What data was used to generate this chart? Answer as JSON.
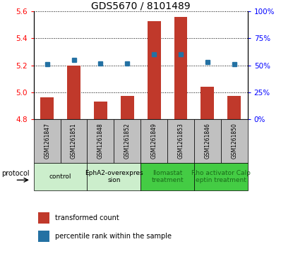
{
  "title": "GDS5670 / 8101489",
  "samples": [
    "GSM1261847",
    "GSM1261851",
    "GSM1261848",
    "GSM1261852",
    "GSM1261849",
    "GSM1261853",
    "GSM1261846",
    "GSM1261850"
  ],
  "transformed_count": [
    4.96,
    5.2,
    4.93,
    4.97,
    5.53,
    5.56,
    5.04,
    4.97
  ],
  "percentile_rank": [
    51,
    55,
    52,
    52,
    60,
    60,
    53,
    51
  ],
  "ylim_left": [
    4.8,
    5.6
  ],
  "ylim_right": [
    0,
    100
  ],
  "yticks_left": [
    4.8,
    5.0,
    5.2,
    5.4,
    5.6
  ],
  "yticks_right": [
    0,
    25,
    50,
    75,
    100
  ],
  "bar_color": "#c0392b",
  "dot_color": "#2471a3",
  "bar_width": 0.5,
  "groups": [
    {
      "label": "control",
      "samples": [
        0,
        1
      ],
      "color": "#cceecc"
    },
    {
      "label": "EphA2-overexpres\nsion",
      "samples": [
        2,
        3
      ],
      "color": "#cceecc"
    },
    {
      "label": "Ilomastat\ntreatment",
      "samples": [
        4,
        5
      ],
      "color": "#44cc44"
    },
    {
      "label": "Rho activator Calp\neptin treatment",
      "samples": [
        6,
        7
      ],
      "color": "#44cc44"
    }
  ],
  "legend_bar_label": "transformed count",
  "legend_dot_label": "percentile rank within the sample",
  "protocol_label": "protocol",
  "sample_box_color": "#c0c0c0",
  "title_fontsize": 10,
  "axis_fontsize": 7.5,
  "tick_fontsize": 7.5,
  "sample_fontsize": 5.5,
  "group_fontsize": 6.5,
  "legend_fontsize": 7
}
